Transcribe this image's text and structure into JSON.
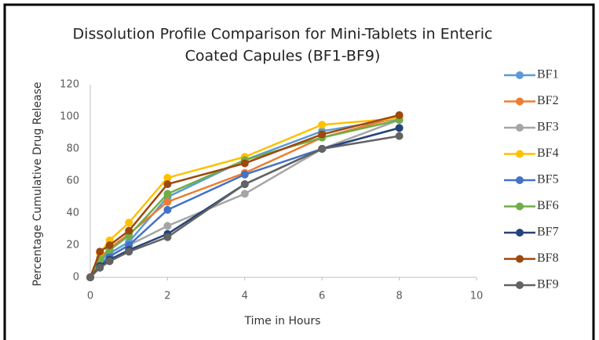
{
  "chart_data": {
    "type": "line",
    "title": [
      "Dissolution Profile Comparison for Mini-Tablets in Enteric",
      "Coated Capules (BF1-BF9)"
    ],
    "x_label": "Time in Hours",
    "y_label": "Percentage Cumulative Drug Release",
    "x": [
      0,
      0.25,
      0.5,
      1,
      2,
      4,
      6,
      8
    ],
    "xlim": [
      0,
      10
    ],
    "xticks": [
      0,
      2,
      4,
      6,
      8,
      10
    ],
    "ylim": [
      0,
      120
    ],
    "yticks": [
      0,
      20,
      40,
      60,
      80,
      100,
      120
    ],
    "grid": false,
    "legend": "right",
    "series": [
      {
        "name": "BF1",
        "color": "#5b9bd5",
        "values": [
          0,
          10,
          15,
          22,
          50,
          73,
          91,
          99
        ]
      },
      {
        "name": "BF2",
        "color": "#ed7d31",
        "values": [
          0,
          12,
          18,
          27,
          47,
          65,
          87,
          100
        ]
      },
      {
        "name": "BF3",
        "color": "#a5a5a5",
        "values": [
          0,
          8,
          13,
          20,
          32,
          52,
          80,
          98
        ]
      },
      {
        "name": "BF4",
        "color": "#ffc000",
        "values": [
          0,
          15,
          23,
          34,
          62,
          75,
          95,
          99
        ]
      },
      {
        "name": "BF5",
        "color": "#4472c4",
        "values": [
          0,
          8,
          13,
          20,
          42,
          64,
          80,
          93
        ]
      },
      {
        "name": "BF6",
        "color": "#70ad47",
        "values": [
          0,
          11,
          17,
          26,
          52,
          73,
          87,
          98
        ]
      },
      {
        "name": "BF7",
        "color": "#264478",
        "values": [
          0,
          7,
          11,
          17,
          27,
          58,
          80,
          93
        ]
      },
      {
        "name": "BF8",
        "color": "#9e480e",
        "values": [
          0,
          16,
          20,
          29,
          58,
          71,
          89,
          101
        ]
      },
      {
        "name": "BF9",
        "color": "#636363",
        "values": [
          0,
          6,
          10,
          16,
          25,
          58,
          80,
          88
        ]
      }
    ]
  }
}
